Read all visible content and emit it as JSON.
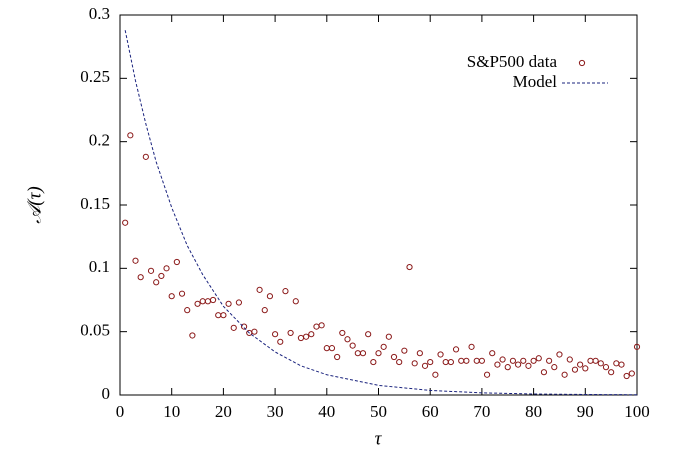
{
  "chart_data": {
    "type": "scatter",
    "xlabel": "τ",
    "ylabel": "𝒜(τ)",
    "xlim": [
      0,
      100
    ],
    "ylim": [
      0,
      0.3
    ],
    "xticks": [
      0,
      10,
      20,
      30,
      40,
      50,
      60,
      70,
      80,
      90,
      100
    ],
    "yticks": [
      0,
      0.05,
      0.1,
      0.15,
      0.2,
      0.25,
      0.3
    ],
    "legend_position": "upper right",
    "series": [
      {
        "name": "S&P500 data",
        "type": "scatter",
        "color": "#8b1a1a",
        "x": [
          1,
          2,
          3,
          4,
          5,
          6,
          7,
          8,
          9,
          10,
          11,
          12,
          13,
          14,
          15,
          16,
          17,
          18,
          19,
          20,
          21,
          22,
          23,
          24,
          25,
          26,
          27,
          28,
          29,
          30,
          31,
          32,
          33,
          34,
          35,
          36,
          37,
          38,
          39,
          40,
          41,
          42,
          43,
          44,
          45,
          46,
          47,
          48,
          49,
          50,
          51,
          52,
          53,
          54,
          55,
          56,
          57,
          58,
          59,
          60,
          61,
          62,
          63,
          64,
          65,
          66,
          67,
          68,
          69,
          70,
          71,
          72,
          73,
          74,
          75,
          76,
          77,
          78,
          79,
          80,
          81,
          82,
          83,
          84,
          85,
          86,
          87,
          88,
          89,
          90,
          91,
          92,
          93,
          94,
          95,
          96,
          97,
          98,
          99,
          100
        ],
        "values": [
          0.136,
          0.205,
          0.106,
          0.093,
          0.188,
          0.098,
          0.089,
          0.094,
          0.1,
          0.078,
          0.105,
          0.08,
          0.067,
          0.047,
          0.072,
          0.074,
          0.074,
          0.075,
          0.063,
          0.063,
          0.072,
          0.053,
          0.073,
          0.054,
          0.049,
          0.05,
          0.083,
          0.067,
          0.078,
          0.048,
          0.042,
          0.082,
          0.049,
          0.074,
          0.045,
          0.046,
          0.048,
          0.054,
          0.055,
          0.037,
          0.037,
          0.03,
          0.049,
          0.044,
          0.039,
          0.033,
          0.033,
          0.048,
          0.026,
          0.033,
          0.038,
          0.046,
          0.03,
          0.026,
          0.035,
          0.101,
          0.025,
          0.033,
          0.023,
          0.026,
          0.016,
          0.032,
          0.026,
          0.026,
          0.036,
          0.027,
          0.027,
          0.038,
          0.027,
          0.027,
          0.016,
          0.033,
          0.024,
          0.028,
          0.022,
          0.027,
          0.024,
          0.027,
          0.023,
          0.027,
          0.029,
          0.018,
          0.027,
          0.022,
          0.032,
          0.016,
          0.028,
          0.02,
          0.024,
          0.021,
          0.027,
          0.027,
          0.025,
          0.022,
          0.018,
          0.025,
          0.024,
          0.015,
          0.017,
          0.038
        ]
      },
      {
        "name": "Model",
        "type": "line",
        "color": "#1a237e",
        "x": [
          1,
          3,
          5,
          7,
          10,
          13,
          16,
          20,
          25,
          30,
          35,
          40,
          50,
          60,
          70,
          80,
          90,
          100
        ],
        "values": [
          0.288,
          0.248,
          0.214,
          0.184,
          0.148,
          0.118,
          0.095,
          0.07,
          0.049,
          0.034,
          0.023,
          0.016,
          0.0076,
          0.0036,
          0.0017,
          0.0008,
          0.0004,
          0.0002
        ]
      }
    ]
  }
}
